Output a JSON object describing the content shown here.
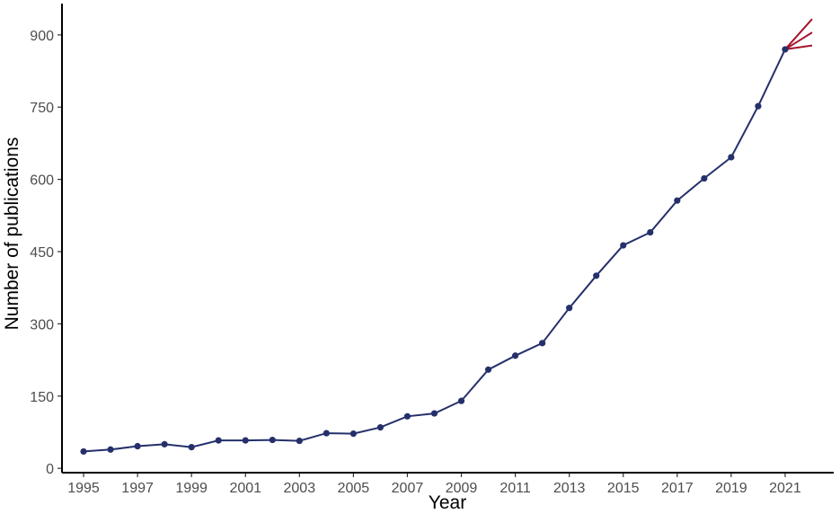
{
  "chart_data": {
    "type": "line",
    "xlabel": "Year",
    "ylabel": "Number of publications",
    "xlim": [
      1994.2,
      2022.8
    ],
    "ylim": [
      -9,
      965
    ],
    "x_ticks": [
      1995,
      1997,
      1999,
      2001,
      2003,
      2005,
      2007,
      2009,
      2011,
      2013,
      2015,
      2017,
      2019,
      2021
    ],
    "y_ticks": [
      0,
      150,
      300,
      450,
      600,
      750,
      900
    ],
    "grid": false,
    "legend": "none",
    "series": [
      {
        "x": [
          1995,
          1996,
          1997,
          1998,
          1999,
          2000,
          2001,
          2002,
          2003,
          2004,
          2005,
          2006,
          2007,
          2008,
          2009,
          2010,
          2011,
          2012,
          2013,
          2014,
          2015,
          2016,
          2017,
          2018,
          2019,
          2020,
          2021
        ],
        "y": [
          35,
          39,
          46,
          50,
          44,
          58,
          58,
          59,
          57,
          73,
          72,
          85,
          108,
          114,
          140,
          205,
          234,
          260,
          333,
          400,
          463,
          490,
          556,
          602,
          646,
          752,
          870
        ],
        "color": "#25306b"
      }
    ],
    "forecast": {
      "from": [
        2021,
        870
      ],
      "to_x": 2022,
      "y": [
        878,
        905,
        933
      ],
      "color": "#a3142c"
    }
  }
}
